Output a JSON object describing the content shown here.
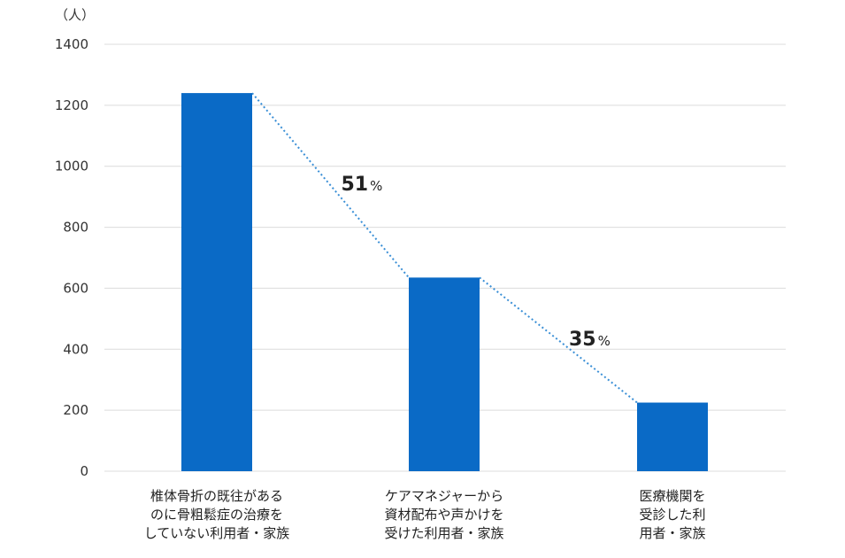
{
  "chart_data": {
    "type": "bar",
    "unit_label": "（人）",
    "categories": [
      [
        "椎体骨折の既往がある",
        "のに骨粗鬆症の治療を",
        "していない利用者・家族"
      ],
      [
        "ケアマネジャーから",
        "資材配布や声かけを",
        "受けた利用者・家族"
      ],
      [
        "医療機関を",
        "受診した利",
        "用者・家族"
      ]
    ],
    "values": [
      1240,
      635,
      225
    ],
    "ylim": [
      0,
      1400
    ],
    "yticks": [
      0,
      200,
      400,
      600,
      800,
      1000,
      1200,
      1400
    ],
    "grid": true,
    "bar_color": "#0a6ac6",
    "connector_color": "#3a8fd6",
    "annotations": [
      {
        "between": [
          0,
          1
        ],
        "value": "51",
        "unit": "%"
      },
      {
        "between": [
          1,
          2
        ],
        "value": "35",
        "unit": "%"
      }
    ]
  }
}
